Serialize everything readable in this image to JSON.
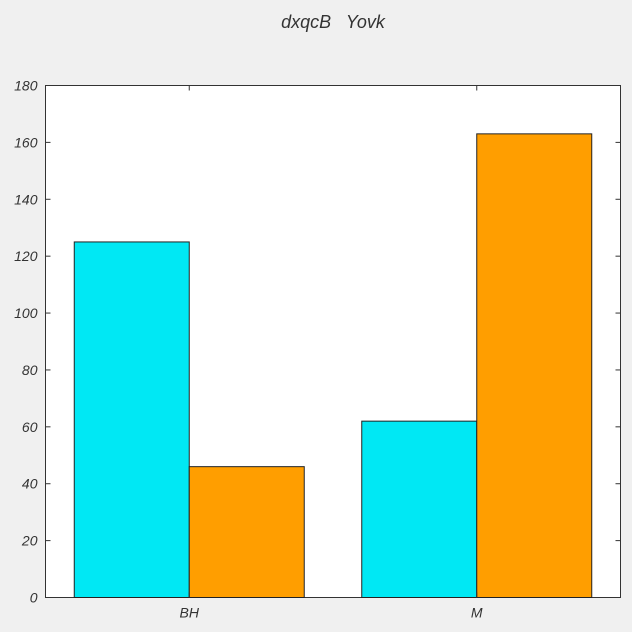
{
  "chart_data": {
    "type": "bar",
    "title": "dxqcB   Yovk",
    "xlabel": "",
    "ylabel": "",
    "categories": [
      "BH",
      "M"
    ],
    "series": [
      {
        "values": [
          125,
          62
        ],
        "color": "#00e8f4"
      },
      {
        "values": [
          46,
          163
        ],
        "color": "#ff9e00"
      }
    ],
    "ylim": [
      0,
      180
    ],
    "yticks": [
      0,
      20,
      40,
      60,
      80,
      100,
      120,
      140,
      160,
      180
    ],
    "ytick_labels": [
      "0",
      "20",
      "40",
      "60",
      "80",
      "100",
      "120",
      "140",
      "160",
      "180"
    ],
    "grid": false,
    "legend": "none",
    "colors": {
      "background": "#f0f0f0",
      "plot_background": "#ffffff",
      "axis": "#333333"
    }
  }
}
